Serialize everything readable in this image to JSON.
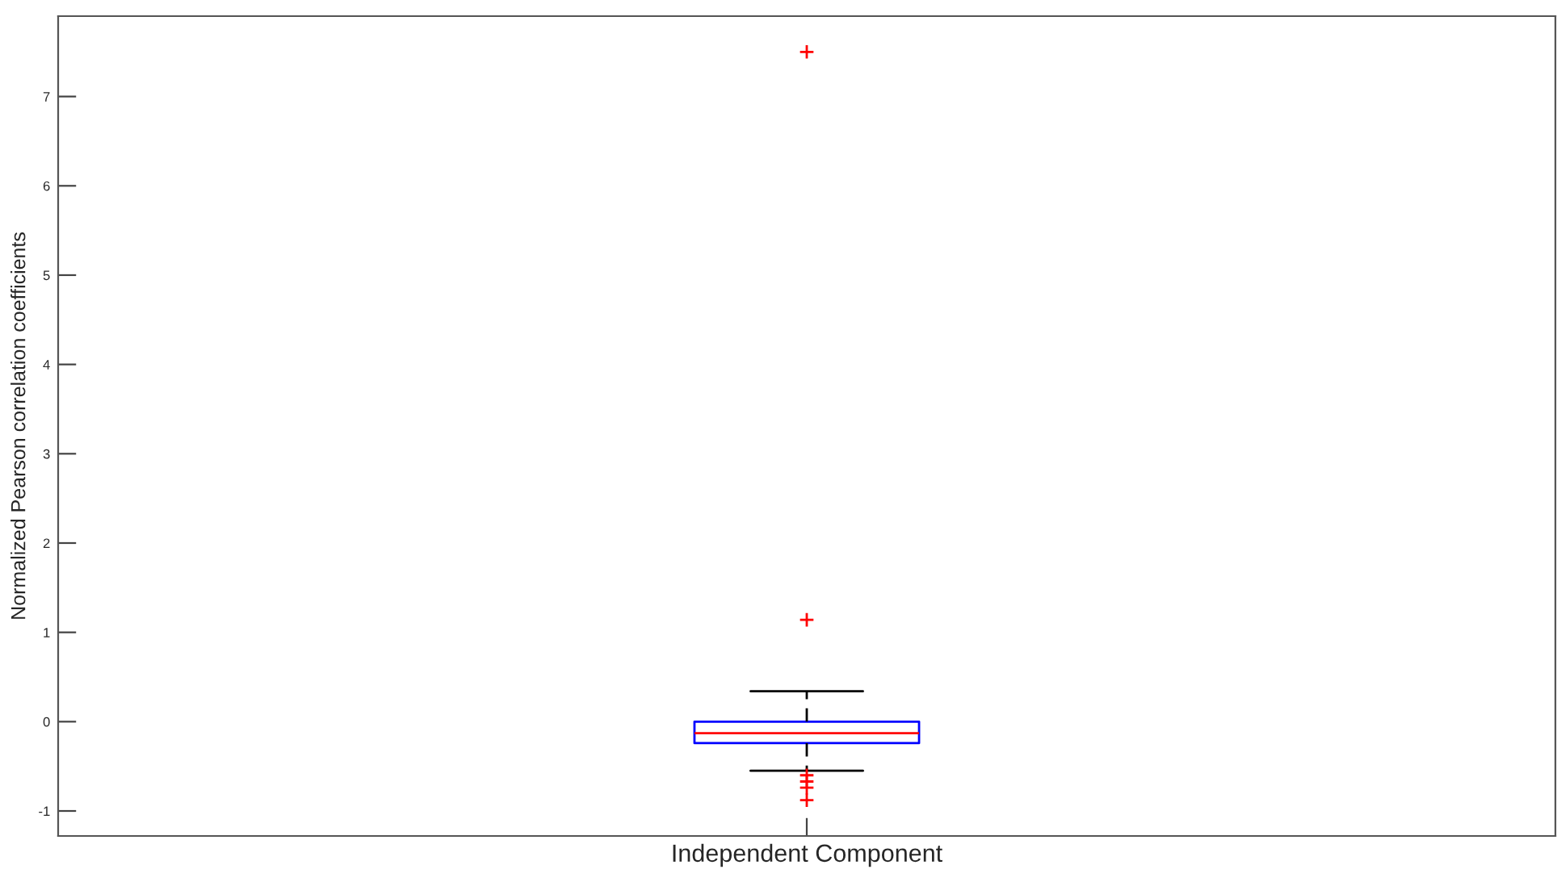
{
  "chart_data": {
    "type": "box",
    "ylabel": "Normalized Pearson correlation coefficients",
    "categories": [
      "Independent Component"
    ],
    "boxes": [
      {
        "low": -0.55,
        "q1": -0.24,
        "median": -0.13,
        "q3": 0.0,
        "high": 0.34,
        "outliers": [
          7.5,
          1.14,
          -0.6,
          -0.67,
          -0.74,
          -0.88
        ]
      }
    ],
    "color": "#0000ff",
    "ylim": [
      -1.28,
      7.9
    ],
    "yticks": [
      -1,
      0,
      1,
      2,
      3,
      4,
      5,
      6,
      7
    ],
    "grid": false
  }
}
